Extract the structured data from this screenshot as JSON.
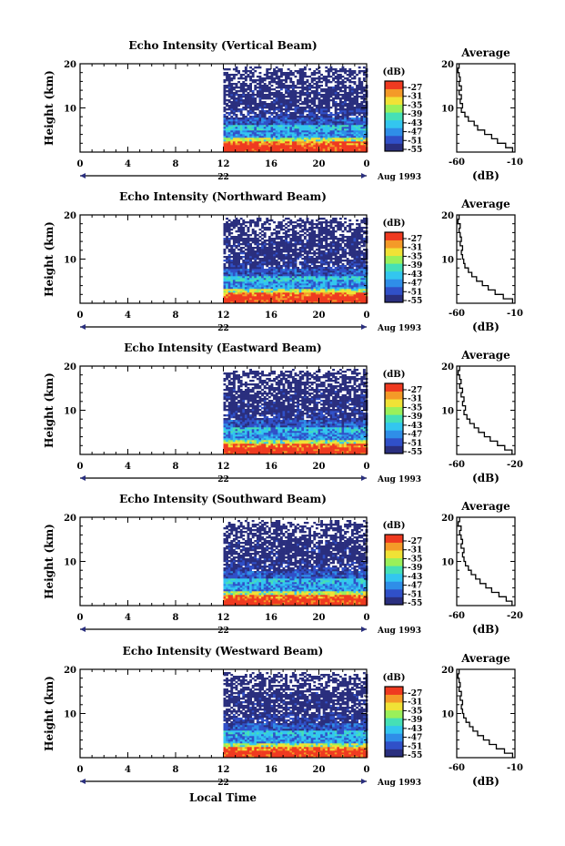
{
  "figure": {
    "xlabel": "Local Time",
    "date_label": "Aug 1993",
    "day_label": "22",
    "avg_title": "Average",
    "cb_unit": "(dB)",
    "avg_xlabel": "(dB)",
    "ylabel": "Height (km)"
  },
  "colors": {
    "colormap": [
      "#2a2f7e",
      "#3050c8",
      "#2f8ee8",
      "#33c6ef",
      "#46e0b6",
      "#9af05a",
      "#f0e236",
      "#f49a28",
      "#ef3a20"
    ]
  },
  "chart_data": [
    {
      "type": "heatmap",
      "title": "Echo Intensity (Vertical Beam)",
      "ylabel": "Height (km)",
      "xticks": [
        "0",
        "4",
        "8",
        "12",
        "16",
        "20",
        "0"
      ],
      "yticks": [
        "20",
        "10"
      ],
      "xlim": [
        0,
        24
      ],
      "ylim": [
        0,
        20
      ],
      "data_start_hour": 12,
      "colorbar_ticks": [
        "-27",
        "-31",
        "-35",
        "-39",
        "-43",
        "-47",
        "-51",
        "-55"
      ],
      "average": {
        "title": "Average",
        "xlabel": "(dB)",
        "xticks": [
          "-60",
          "-10"
        ],
        "yticks": [
          "20",
          "10"
        ],
        "xlim": [
          -60,
          -10
        ],
        "profile": [
          [
            -12,
            1
          ],
          [
            -18,
            2
          ],
          [
            -25,
            3
          ],
          [
            -30,
            4
          ],
          [
            -36,
            5
          ],
          [
            -42,
            6
          ],
          [
            -45,
            7
          ],
          [
            -50,
            8
          ],
          [
            -53,
            9
          ],
          [
            -56,
            10
          ],
          [
            -55,
            11
          ],
          [
            -57,
            12
          ],
          [
            -56,
            13
          ],
          [
            -58,
            14
          ],
          [
            -56,
            15
          ],
          [
            -58,
            16
          ],
          [
            -57,
            17
          ],
          [
            -58,
            18
          ],
          [
            -59,
            19
          ],
          [
            -58,
            20
          ]
        ]
      }
    },
    {
      "type": "heatmap",
      "title": "Echo Intensity (Northward Beam)",
      "ylabel": "Height (km)",
      "xticks": [
        "0",
        "4",
        "8",
        "12",
        "16",
        "20",
        "0"
      ],
      "yticks": [
        "20",
        "10"
      ],
      "xlim": [
        0,
        24
      ],
      "ylim": [
        0,
        20
      ],
      "data_start_hour": 12,
      "colorbar_ticks": [
        "-27",
        "-31",
        "-35",
        "-39",
        "-43",
        "-47",
        "-51",
        "-55"
      ],
      "average": {
        "title": "Average",
        "xlabel": "(dB)",
        "xticks": [
          "-60",
          "-10"
        ],
        "yticks": [
          "20",
          "10"
        ],
        "xlim": [
          -60,
          -10
        ],
        "profile": [
          [
            -12,
            1
          ],
          [
            -20,
            2
          ],
          [
            -27,
            3
          ],
          [
            -33,
            4
          ],
          [
            -38,
            5
          ],
          [
            -43,
            6
          ],
          [
            -47,
            7
          ],
          [
            -50,
            8
          ],
          [
            -53,
            9
          ],
          [
            -54,
            10
          ],
          [
            -55,
            11
          ],
          [
            -56,
            12
          ],
          [
            -55,
            13
          ],
          [
            -57,
            14
          ],
          [
            -56,
            15
          ],
          [
            -57,
            16
          ],
          [
            -58,
            17
          ],
          [
            -57,
            18
          ],
          [
            -59,
            19
          ],
          [
            -58,
            20
          ]
        ]
      }
    },
    {
      "type": "heatmap",
      "title": "Echo Intensity (Eastward Beam)",
      "ylabel": "Height (km)",
      "xticks": [
        "0",
        "4",
        "8",
        "12",
        "16",
        "20",
        "0"
      ],
      "yticks": [
        "20",
        "10"
      ],
      "xlim": [
        0,
        24
      ],
      "ylim": [
        0,
        20
      ],
      "data_start_hour": 12,
      "colorbar_ticks": [
        "-27",
        "-31",
        "-35",
        "-39",
        "-43",
        "-47",
        "-51",
        "-55"
      ],
      "average": {
        "title": "Average",
        "xlabel": "(dB)",
        "xticks": [
          "-60",
          "-20"
        ],
        "yticks": [
          "20",
          "10"
        ],
        "xlim": [
          -60,
          -20
        ],
        "profile": [
          [
            -22,
            1
          ],
          [
            -27,
            2
          ],
          [
            -32,
            3
          ],
          [
            -37,
            4
          ],
          [
            -41,
            5
          ],
          [
            -45,
            6
          ],
          [
            -48,
            7
          ],
          [
            -51,
            8
          ],
          [
            -53,
            9
          ],
          [
            -55,
            10
          ],
          [
            -54,
            11
          ],
          [
            -56,
            12
          ],
          [
            -55,
            13
          ],
          [
            -57,
            14
          ],
          [
            -56,
            15
          ],
          [
            -58,
            16
          ],
          [
            -57,
            17
          ],
          [
            -58,
            18
          ],
          [
            -59,
            19
          ],
          [
            -58,
            20
          ]
        ]
      }
    },
    {
      "type": "heatmap",
      "title": "Echo Intensity (Southward Beam)",
      "ylabel": "Height (km)",
      "xticks": [
        "0",
        "4",
        "8",
        "12",
        "16",
        "20",
        "0"
      ],
      "yticks": [
        "20",
        "10"
      ],
      "xlim": [
        0,
        24
      ],
      "ylim": [
        0,
        20
      ],
      "data_start_hour": 12,
      "colorbar_ticks": [
        "-27",
        "-31",
        "-35",
        "-39",
        "-43",
        "-47",
        "-51",
        "-55"
      ],
      "average": {
        "title": "Average",
        "xlabel": "(dB)",
        "xticks": [
          "-60",
          "-20"
        ],
        "yticks": [
          "20",
          "10"
        ],
        "xlim": [
          -60,
          -20
        ],
        "profile": [
          [
            -22,
            1
          ],
          [
            -26,
            2
          ],
          [
            -31,
            3
          ],
          [
            -36,
            4
          ],
          [
            -40,
            5
          ],
          [
            -44,
            6
          ],
          [
            -47,
            7
          ],
          [
            -50,
            8
          ],
          [
            -52,
            9
          ],
          [
            -54,
            10
          ],
          [
            -55,
            11
          ],
          [
            -56,
            12
          ],
          [
            -55,
            13
          ],
          [
            -57,
            14
          ],
          [
            -56,
            15
          ],
          [
            -57,
            16
          ],
          [
            -58,
            17
          ],
          [
            -57,
            18
          ],
          [
            -59,
            19
          ],
          [
            -58,
            20
          ]
        ]
      }
    },
    {
      "type": "heatmap",
      "title": "Echo Intensity (Westward Beam)",
      "ylabel": "Height (km)",
      "xticks": [
        "0",
        "4",
        "8",
        "12",
        "16",
        "20",
        "0"
      ],
      "yticks": [
        "20",
        "10"
      ],
      "xlim": [
        0,
        24
      ],
      "ylim": [
        0,
        20
      ],
      "data_start_hour": 12,
      "colorbar_ticks": [
        "-27",
        "-31",
        "-35",
        "-39",
        "-43",
        "-47",
        "-51",
        "-55"
      ],
      "average": {
        "title": "Average",
        "xlabel": "(dB)",
        "xticks": [
          "-60",
          "-10"
        ],
        "yticks": [
          "20",
          "10"
        ],
        "xlim": [
          -60,
          -10
        ],
        "profile": [
          [
            -12,
            1
          ],
          [
            -19,
            2
          ],
          [
            -26,
            3
          ],
          [
            -32,
            4
          ],
          [
            -37,
            5
          ],
          [
            -42,
            6
          ],
          [
            -46,
            7
          ],
          [
            -49,
            8
          ],
          [
            -52,
            9
          ],
          [
            -54,
            10
          ],
          [
            -55,
            11
          ],
          [
            -56,
            12
          ],
          [
            -55,
            13
          ],
          [
            -57,
            14
          ],
          [
            -56,
            15
          ],
          [
            -58,
            16
          ],
          [
            -57,
            17
          ],
          [
            -58,
            18
          ],
          [
            -59,
            19
          ],
          [
            -58,
            20
          ]
        ]
      }
    }
  ]
}
